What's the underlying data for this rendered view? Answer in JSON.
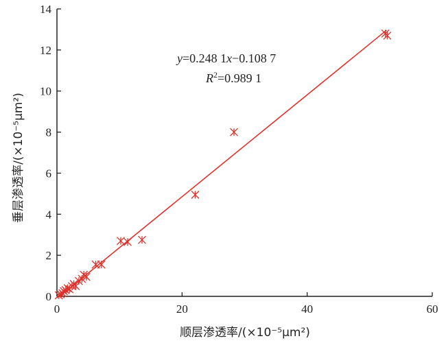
{
  "chart_data": {
    "type": "scatter",
    "xlabel": "顺层渗透率/(×10⁻⁵μm²)",
    "ylabel": "垂层渗透率/(×10⁻⁵μm²)",
    "xlim": [
      0,
      60
    ],
    "ylim": [
      0,
      14
    ],
    "x_ticks": [
      "0",
      "20",
      "40",
      "60"
    ],
    "y_ticks": [
      "0",
      "2",
      "4",
      "6",
      "8",
      "10",
      "12",
      "14"
    ],
    "x_tick_values": [
      0,
      20,
      40,
      60
    ],
    "y_tick_values": [
      0,
      2,
      4,
      6,
      8,
      10,
      12,
      14
    ],
    "grid": false,
    "marker": "asterisk",
    "colors": {
      "marker": "#e0302a",
      "fit_line": "#e0302a",
      "axis": "#222222"
    },
    "points": [
      {
        "x": 0.3,
        "y": 0.05
      },
      {
        "x": 0.6,
        "y": 0.1
      },
      {
        "x": 0.9,
        "y": 0.15
      },
      {
        "x": 1.1,
        "y": 0.25
      },
      {
        "x": 1.4,
        "y": 0.3
      },
      {
        "x": 1.7,
        "y": 0.4
      },
      {
        "x": 2.0,
        "y": 0.35
      },
      {
        "x": 2.4,
        "y": 0.5
      },
      {
        "x": 2.7,
        "y": 0.6
      },
      {
        "x": 3.0,
        "y": 0.5
      },
      {
        "x": 3.5,
        "y": 0.75
      },
      {
        "x": 4.0,
        "y": 0.85
      },
      {
        "x": 4.3,
        "y": 1.05
      },
      {
        "x": 4.7,
        "y": 0.95
      },
      {
        "x": 6.2,
        "y": 1.55
      },
      {
        "x": 7.1,
        "y": 1.55
      },
      {
        "x": 10.2,
        "y": 2.7
      },
      {
        "x": 11.3,
        "y": 2.65
      },
      {
        "x": 13.6,
        "y": 2.75
      },
      {
        "x": 22.1,
        "y": 4.95
      },
      {
        "x": 28.3,
        "y": 8.0
      },
      {
        "x": 52.5,
        "y": 12.8
      },
      {
        "x": 52.8,
        "y": 12.7
      }
    ],
    "fit": {
      "slope": 0.2481,
      "intercept": -0.1087,
      "x_range": [
        0.5,
        52.7
      ],
      "equation": {
        "y_var": "y",
        "eq_middle": "=0.248 1",
        "x_var": "x",
        "eq_tail": "−0.108 7",
        "r_var": "R",
        "r_sup": "2",
        "r_tail": "=0.989 1"
      }
    }
  }
}
